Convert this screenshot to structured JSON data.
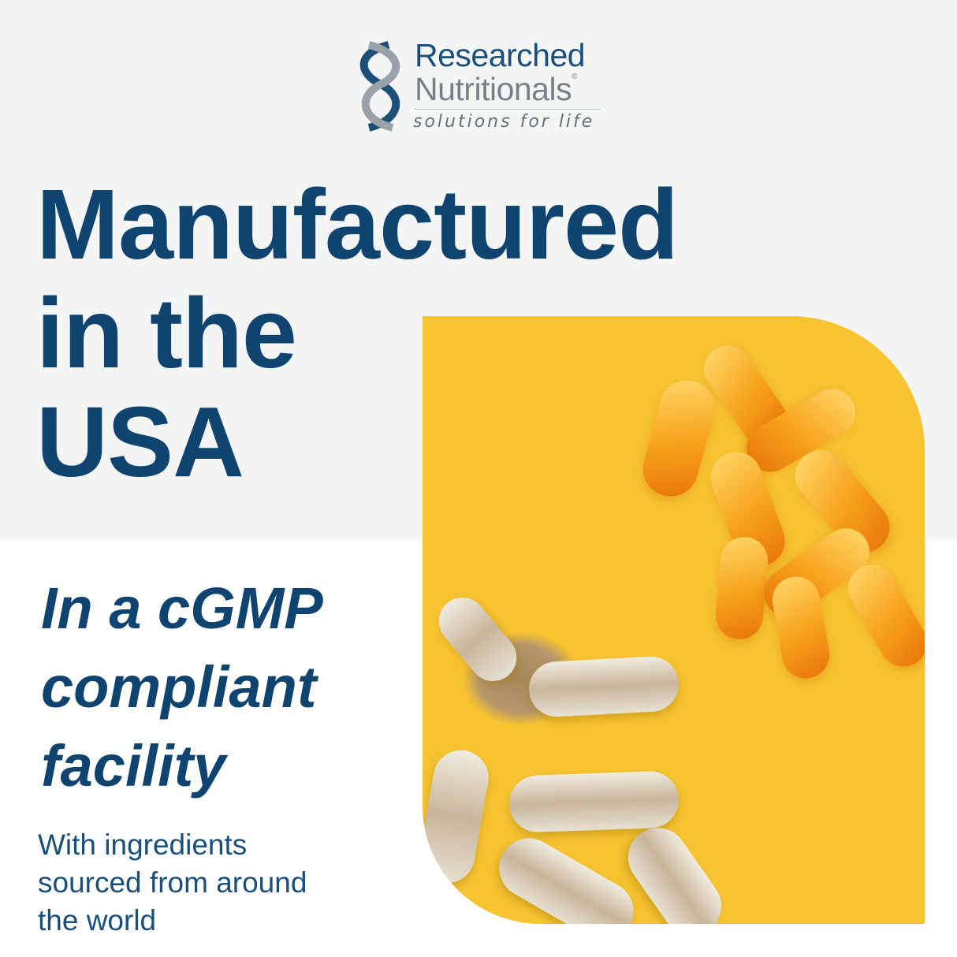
{
  "logo": {
    "line1": "Researched",
    "line2": "Nutritionals",
    "registered": "®",
    "tagline": "solutions for life"
  },
  "headline": [
    "Manufactured",
    "in the",
    "USA"
  ],
  "subheadline": [
    "In a cGMP",
    "compliant",
    "facility"
  ],
  "note": [
    "With ingredients",
    "sourced from around",
    "the world"
  ],
  "colors": {
    "brand_navy": "#0f4470",
    "photo_yellow": "#f6c331",
    "top_background": "#f4f6f6"
  }
}
